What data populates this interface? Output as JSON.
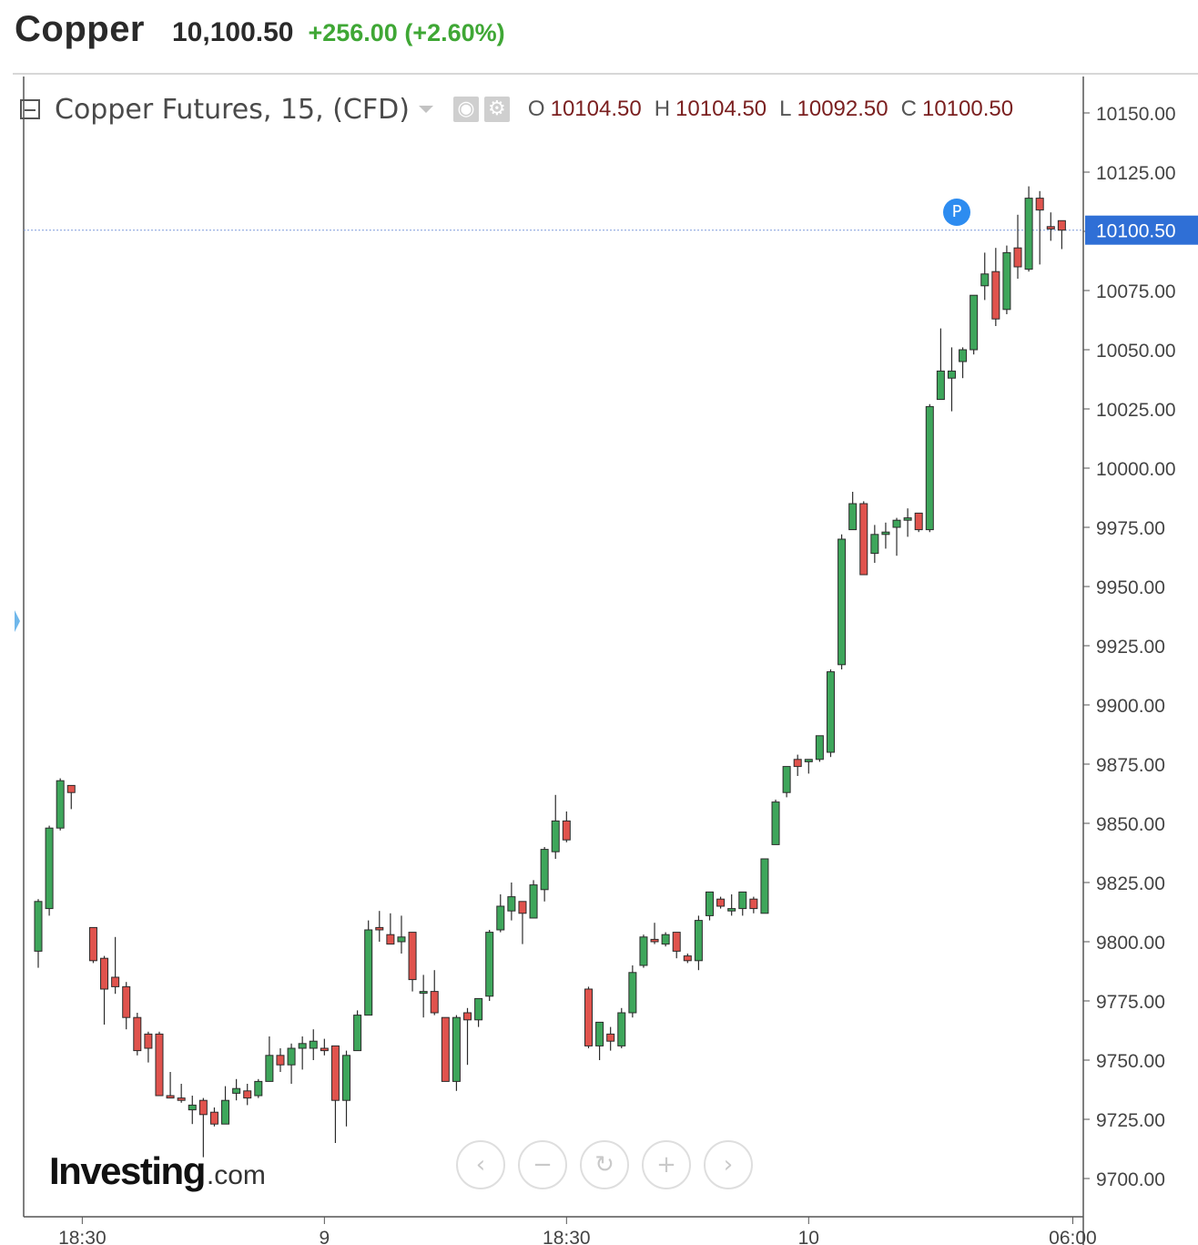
{
  "header": {
    "name": "Copper",
    "price": "10,100.50",
    "change": "+256.00 (+2.60%)",
    "change_color": "#3fa735"
  },
  "legend": {
    "title": "Copper Futures, 15, (CFD)",
    "icons": [
      "collapse-icon",
      "eye-icon",
      "gear-icon"
    ],
    "o_label": "O",
    "o_value": "10104.50",
    "h_label": "H",
    "h_value": "10104.50",
    "l_label": "L",
    "l_value": "10092.50",
    "c_label": "C",
    "c_value": "10100.50"
  },
  "marker": {
    "label": "P"
  },
  "logo": {
    "main": "Investing",
    "domain": ".com"
  },
  "nav_buttons": [
    {
      "name": "scroll-left-button",
      "icon": "chevron-left-icon",
      "glyph": "‹"
    },
    {
      "name": "zoom-out-button",
      "icon": "minus-icon",
      "glyph": "−"
    },
    {
      "name": "reset-button",
      "icon": "refresh-icon",
      "glyph": "↻"
    },
    {
      "name": "zoom-in-button",
      "icon": "plus-icon",
      "glyph": "+"
    },
    {
      "name": "scroll-right-button",
      "icon": "chevron-right-icon",
      "glyph": "›"
    }
  ],
  "chart_data": {
    "type": "candlestick",
    "interval": "15",
    "ylim": [
      9680,
      10160
    ],
    "y_ticks": [
      "10150.00",
      "10125.00",
      "10100.00",
      "10075.00",
      "10050.00",
      "10025.00",
      "10000.00",
      "9975.00",
      "9950.00",
      "9925.00",
      "9900.00",
      "9875.00",
      "9850.00",
      "9825.00",
      "9800.00",
      "9775.00",
      "9750.00",
      "9725.00",
      "9700.00"
    ],
    "x_ticks": [
      {
        "label": "18:30",
        "index": 4
      },
      {
        "label": "9",
        "index": 26
      },
      {
        "label": "18:30",
        "index": 48
      },
      {
        "label": "10",
        "index": 70
      },
      {
        "label": "06:00",
        "index": 94
      }
    ],
    "current_price": 10100.5,
    "current_price_label": "10100.50",
    "up_color": "#3ea65b",
    "down_color": "#e0534d",
    "candles": [
      {
        "i": 0,
        "o": 9796,
        "h": 9818,
        "l": 9789,
        "c": 9817
      },
      {
        "i": 1,
        "o": 9814,
        "h": 9849,
        "l": 9811,
        "c": 9848
      },
      {
        "i": 2,
        "o": 9848,
        "h": 9869,
        "l": 9847,
        "c": 9868
      },
      {
        "i": 3,
        "o": 9866,
        "h": 9866,
        "l": 9856,
        "c": 9863
      },
      {
        "i": 5,
        "o": 9806,
        "h": 9806,
        "l": 9791,
        "c": 9792
      },
      {
        "i": 6,
        "o": 9793,
        "h": 9794,
        "l": 9765,
        "c": 9780
      },
      {
        "i": 7,
        "o": 9785,
        "h": 9802,
        "l": 9778,
        "c": 9781
      },
      {
        "i": 8,
        "o": 9781,
        "h": 9783,
        "l": 9763,
        "c": 9768
      },
      {
        "i": 9,
        "o": 9768,
        "h": 9770,
        "l": 9752,
        "c": 9754
      },
      {
        "i": 10,
        "o": 9761,
        "h": 9762,
        "l": 9749,
        "c": 9755
      },
      {
        "i": 11,
        "o": 9761,
        "h": 9762,
        "l": 9735,
        "c": 9735
      },
      {
        "i": 12,
        "o": 9735,
        "h": 9745,
        "l": 9735,
        "c": 9734
      },
      {
        "i": 13,
        "o": 9734,
        "h": 9740,
        "l": 9732,
        "c": 9733
      },
      {
        "i": 14,
        "o": 9729,
        "h": 9735,
        "l": 9723,
        "c": 9731
      },
      {
        "i": 15,
        "o": 9733,
        "h": 9734,
        "l": 9709,
        "c": 9727
      },
      {
        "i": 16,
        "o": 9728,
        "h": 9730,
        "l": 9722,
        "c": 9723
      },
      {
        "i": 17,
        "o": 9723,
        "h": 9739,
        "l": 9723,
        "c": 9733
      },
      {
        "i": 18,
        "o": 9736,
        "h": 9742,
        "l": 9733,
        "c": 9738
      },
      {
        "i": 19,
        "o": 9737,
        "h": 9740,
        "l": 9731,
        "c": 9734
      },
      {
        "i": 20,
        "o": 9735,
        "h": 9742,
        "l": 9734,
        "c": 9741
      },
      {
        "i": 21,
        "o": 9741,
        "h": 9760,
        "l": 9741,
        "c": 9752
      },
      {
        "i": 22,
        "o": 9752,
        "h": 9755,
        "l": 9745,
        "c": 9748
      },
      {
        "i": 23,
        "o": 9748,
        "h": 9757,
        "l": 9740,
        "c": 9755
      },
      {
        "i": 24,
        "o": 9755,
        "h": 9760,
        "l": 9746,
        "c": 9757
      },
      {
        "i": 25,
        "o": 9755,
        "h": 9763,
        "l": 9750,
        "c": 9758
      },
      {
        "i": 26,
        "o": 9755,
        "h": 9759,
        "l": 9752,
        "c": 9754
      },
      {
        "i": 27,
        "o": 9756,
        "h": 9756,
        "l": 9715,
        "c": 9733
      },
      {
        "i": 28,
        "o": 9733,
        "h": 9754,
        "l": 9722,
        "c": 9752
      },
      {
        "i": 29,
        "o": 9754,
        "h": 9771,
        "l": 9754,
        "c": 9769
      },
      {
        "i": 30,
        "o": 9769,
        "h": 9809,
        "l": 9769,
        "c": 9805
      },
      {
        "i": 31,
        "o": 9806,
        "h": 9813,
        "l": 9800,
        "c": 9805
      },
      {
        "i": 32,
        "o": 9803,
        "h": 9812,
        "l": 9799,
        "c": 9799
      },
      {
        "i": 33,
        "o": 9800,
        "h": 9811,
        "l": 9795,
        "c": 9802
      },
      {
        "i": 34,
        "o": 9804,
        "h": 9804,
        "l": 9779,
        "c": 9784
      },
      {
        "i": 35,
        "o": 9779,
        "h": 9786,
        "l": 9768,
        "c": 9779
      },
      {
        "i": 36,
        "o": 9779,
        "h": 9788,
        "l": 9769,
        "c": 9770
      },
      {
        "i": 37,
        "o": 9768,
        "h": 9768,
        "l": 9741,
        "c": 9741
      },
      {
        "i": 38,
        "o": 9741,
        "h": 9769,
        "l": 9737,
        "c": 9768
      },
      {
        "i": 39,
        "o": 9770,
        "h": 9772,
        "l": 9748,
        "c": 9767
      },
      {
        "i": 40,
        "o": 9767,
        "h": 9776,
        "l": 9764,
        "c": 9776
      },
      {
        "i": 41,
        "o": 9777,
        "h": 9805,
        "l": 9775,
        "c": 9804
      },
      {
        "i": 42,
        "o": 9805,
        "h": 9820,
        "l": 9804,
        "c": 9815
      },
      {
        "i": 43,
        "o": 9813,
        "h": 9825,
        "l": 9809,
        "c": 9819
      },
      {
        "i": 44,
        "o": 9817,
        "h": 9817,
        "l": 9799,
        "c": 9812
      },
      {
        "i": 45,
        "o": 9810,
        "h": 9826,
        "l": 9810,
        "c": 9824
      },
      {
        "i": 46,
        "o": 9822,
        "h": 9840,
        "l": 9817,
        "c": 9839
      },
      {
        "i": 47,
        "o": 9838,
        "h": 9862,
        "l": 9835,
        "c": 9851
      },
      {
        "i": 48,
        "o": 9851,
        "h": 9855,
        "l": 9842,
        "c": 9843
      },
      {
        "i": 50,
        "o": 9780,
        "h": 9781,
        "l": 9755,
        "c": 9756
      },
      {
        "i": 51,
        "o": 9756,
        "h": 9764,
        "l": 9750,
        "c": 9766
      },
      {
        "i": 52,
        "o": 9761,
        "h": 9764,
        "l": 9754,
        "c": 9758
      },
      {
        "i": 53,
        "o": 9756,
        "h": 9772,
        "l": 9755,
        "c": 9770
      },
      {
        "i": 54,
        "o": 9770,
        "h": 9790,
        "l": 9768,
        "c": 9787
      },
      {
        "i": 55,
        "o": 9790,
        "h": 9803,
        "l": 9789,
        "c": 9802
      },
      {
        "i": 56,
        "o": 9801,
        "h": 9808,
        "l": 9799,
        "c": 9800
      },
      {
        "i": 57,
        "o": 9799,
        "h": 9804,
        "l": 9798,
        "c": 9803
      },
      {
        "i": 58,
        "o": 9804,
        "h": 9804,
        "l": 9793,
        "c": 9796
      },
      {
        "i": 59,
        "o": 9794,
        "h": 9795,
        "l": 9791,
        "c": 9792
      },
      {
        "i": 60,
        "o": 9792,
        "h": 9811,
        "l": 9788,
        "c": 9809
      },
      {
        "i": 61,
        "o": 9811,
        "h": 9821,
        "l": 9809,
        "c": 9821
      },
      {
        "i": 62,
        "o": 9818,
        "h": 9819,
        "l": 9814,
        "c": 9815
      },
      {
        "i": 63,
        "o": 9813,
        "h": 9820,
        "l": 9811,
        "c": 9814
      },
      {
        "i": 64,
        "o": 9814,
        "h": 9821,
        "l": 9811,
        "c": 9821
      },
      {
        "i": 65,
        "o": 9818,
        "h": 9819,
        "l": 9812,
        "c": 9814
      },
      {
        "i": 66,
        "o": 9812,
        "h": 9835,
        "l": 9812,
        "c": 9835
      },
      {
        "i": 67,
        "o": 9841,
        "h": 9860,
        "l": 9841,
        "c": 9859
      },
      {
        "i": 68,
        "o": 9863,
        "h": 9873,
        "l": 9861,
        "c": 9874
      },
      {
        "i": 69,
        "o": 9877,
        "h": 9879,
        "l": 9870,
        "c": 9874
      },
      {
        "i": 70,
        "o": 9876,
        "h": 9877,
        "l": 9871,
        "c": 9877
      },
      {
        "i": 71,
        "o": 9877,
        "h": 9887,
        "l": 9876,
        "c": 9887
      },
      {
        "i": 72,
        "o": 9880,
        "h": 9915,
        "l": 9878,
        "c": 9914
      },
      {
        "i": 73,
        "o": 9917,
        "h": 9972,
        "l": 9915,
        "c": 9970
      },
      {
        "i": 74,
        "o": 9974,
        "h": 9990,
        "l": 9974,
        "c": 9985
      },
      {
        "i": 75,
        "o": 9985,
        "h": 9986,
        "l": 9955,
        "c": 9955
      },
      {
        "i": 76,
        "o": 9964,
        "h": 9976,
        "l": 9960,
        "c": 9972
      },
      {
        "i": 77,
        "o": 9972,
        "h": 9977,
        "l": 9966,
        "c": 9973
      },
      {
        "i": 78,
        "o": 9975,
        "h": 9979,
        "l": 9963,
        "c": 9978
      },
      {
        "i": 79,
        "o": 9978,
        "h": 9983,
        "l": 9971,
        "c": 9979
      },
      {
        "i": 80,
        "o": 9981,
        "h": 9981,
        "l": 9973,
        "c": 9974
      },
      {
        "i": 81,
        "o": 9974,
        "h": 10027,
        "l": 9973,
        "c": 10026
      },
      {
        "i": 82,
        "o": 10029,
        "h": 10059,
        "l": 10029,
        "c": 10041
      },
      {
        "i": 83,
        "o": 10038,
        "h": 10051,
        "l": 10024,
        "c": 10041
      },
      {
        "i": 84,
        "o": 10045,
        "h": 10051,
        "l": 10038,
        "c": 10050
      },
      {
        "i": 85,
        "o": 10050,
        "h": 10073,
        "l": 10048,
        "c": 10073
      },
      {
        "i": 86,
        "o": 10077,
        "h": 10091,
        "l": 10071,
        "c": 10082
      },
      {
        "i": 87,
        "o": 10083,
        "h": 10093,
        "l": 10060,
        "c": 10063
      },
      {
        "i": 88,
        "o": 10067,
        "h": 10094,
        "l": 10065,
        "c": 10091
      },
      {
        "i": 89,
        "o": 10093,
        "h": 10107,
        "l": 10080,
        "c": 10085
      },
      {
        "i": 90,
        "o": 10084,
        "h": 10119,
        "l": 10083,
        "c": 10114
      },
      {
        "i": 91,
        "o": 10114,
        "h": 10117,
        "l": 10086,
        "c": 10109
      },
      {
        "i": 92,
        "o": 10102,
        "h": 10108,
        "l": 10096,
        "c": 10101
      },
      {
        "i": 93,
        "o": 10104.5,
        "h": 10104.5,
        "l": 10092.5,
        "c": 10100.5
      }
    ]
  }
}
